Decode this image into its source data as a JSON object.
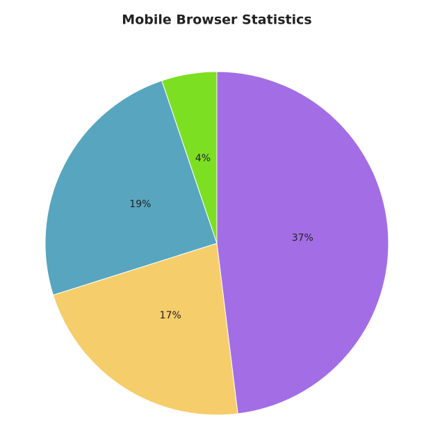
{
  "chart_data": {
    "type": "pie",
    "title": "Mobile Browser Statistics",
    "values": [
      37,
      17,
      19,
      4
    ],
    "value_labels": [
      "37%",
      "17%",
      "19%",
      "4%"
    ],
    "colors": [
      "#a36ee5",
      "#f5cd6b",
      "#58a5bf",
      "#7ddf22"
    ]
  }
}
